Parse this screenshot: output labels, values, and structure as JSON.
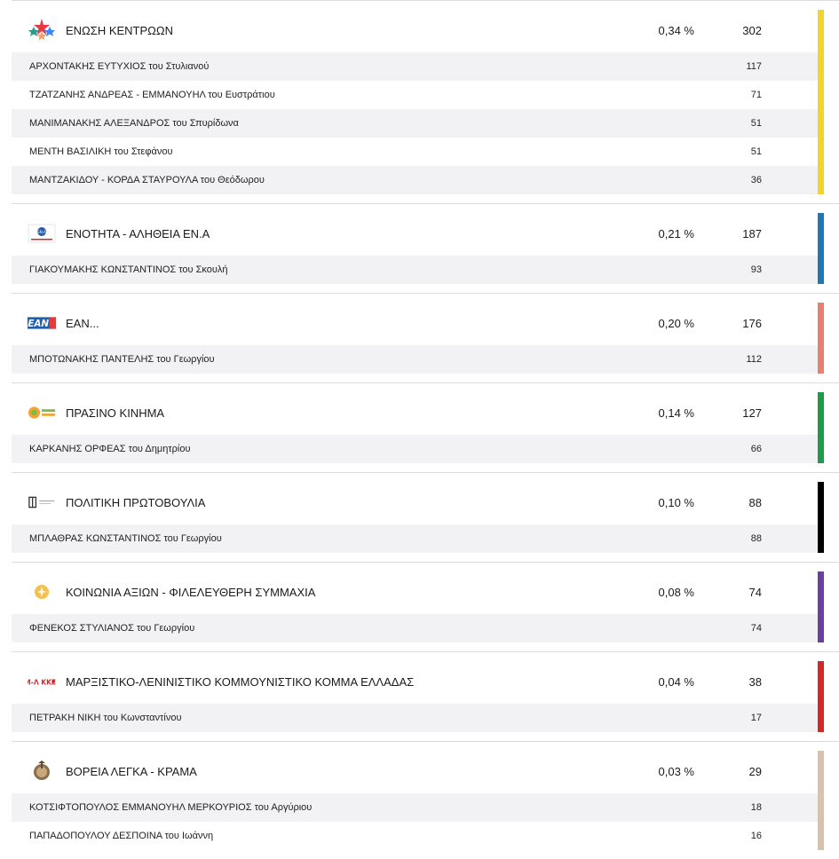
{
  "parties": [
    {
      "name": "ΕΝΩΣΗ ΚΕΝΤΡΩΩΝ",
      "percent": "0,34 %",
      "votes": "302",
      "color": "#f2d52a",
      "logo_icon": "star-cluster-logo-icon",
      "candidates": [
        {
          "name": "ΑΡΧΟΝΤΑΚΗΣ ΕΥΤΥΧΙΟΣ του Στυλιανού",
          "votes": "117"
        },
        {
          "name": "ΤΖΑΤΖΑΝΗΣ ΑΝΔΡΕΑΣ - ΕΜΜΑΝΟΥΗΛ του Ευστράτιου",
          "votes": "71"
        },
        {
          "name": "ΜΑΝΙΜΑΝΑΚΗΣ ΑΛΕΞΑΝΔΡΟΣ του Σπυρίδωνα",
          "votes": "51"
        },
        {
          "name": "ΜΕΝΤΗ ΒΑΣΙΛΙΚΗ του Στεφάνου",
          "votes": "51"
        },
        {
          "name": "ΜΑΝΤΖΑΚΙΔΟΥ - ΚΟΡΔΑ ΣΤΑΥΡΟΥΛΑ του Θεόδωρου",
          "votes": "36"
        }
      ]
    },
    {
      "name": "ΕΝΟΤΗΤΑ - ΑΛΗΘΕΙΑ ΕΝ.Α",
      "percent": "0,21 %",
      "votes": "187",
      "color": "#1f77b4",
      "logo_icon": "ena-logo-icon",
      "logo_text": "ΕΝ.Α",
      "candidates": [
        {
          "name": "ΓΙΑΚΟΥΜΑΚΗΣ ΚΩΝΣΤΑΝΤΙΝΟΣ του Σκουλή",
          "votes": "93"
        }
      ]
    },
    {
      "name": "ΕΑΝ...",
      "percent": "0,20 %",
      "votes": "176",
      "color": "#e8806f",
      "logo_icon": "ean-logo-icon",
      "logo_text": "ΕΑΝ",
      "candidates": [
        {
          "name": "ΜΠΟΤΩΝΑΚΗΣ ΠΑΝΤΕΛΗΣ του Γεωργίου",
          "votes": "112"
        }
      ]
    },
    {
      "name": "ΠΡΑΣΙΝΟ ΚΙΝΗΜΑ",
      "percent": "0,14 %",
      "votes": "127",
      "color": "#1f9a4b",
      "logo_icon": "green-movement-logo-icon",
      "candidates": [
        {
          "name": "ΚΑΡΚΑΝΗΣ ΟΡΦΕΑΣ του Δημητρίου",
          "votes": "66"
        }
      ]
    },
    {
      "name": "ΠΟΛΙΤΙΚΗ ΠΡΩΤΟΒΟΥΛΙΑ",
      "percent": "0,10 %",
      "votes": "88",
      "color": "#000000",
      "logo_icon": "political-initiative-logo-icon",
      "candidates": [
        {
          "name": "ΜΠΛΑΘΡΑΣ ΚΩΝΣΤΑΝΤΙΝΟΣ του Γεωργίου",
          "votes": "88"
        }
      ]
    },
    {
      "name": "ΚΟΙΝΩΝΙΑ ΑΞΙΩΝ - ΦΙΛΕΛΕΥΘΕΡΗ ΣΥΜΜΑΧΙΑ",
      "percent": "0,08 %",
      "votes": "74",
      "color": "#6b3fa0",
      "logo_icon": "society-of-values-logo-icon",
      "candidates": [
        {
          "name": "ΦΕΝΕΚΟΣ ΣΤΥΛΙΑΝΟΣ του Γεωργίου",
          "votes": "74"
        }
      ]
    },
    {
      "name": "ΜΑΡΞΙΣΤΙΚΟ-ΛΕΝΙΝΙΣΤΙΚΟ ΚΟΜΜΟΥΝΙΣΤΙΚΟ ΚΟΜΜΑ ΕΛΛΑΔΑΣ",
      "percent": "0,04 %",
      "votes": "38",
      "color": "#d62728",
      "logo_icon": "ml-kke-logo-icon",
      "logo_text": "Μ-Λ ΚΚΕ",
      "candidates": [
        {
          "name": "ΠΕΤΡΑΚΗ ΝΙΚΗ του Κωνσταντίνου",
          "votes": "17"
        }
      ]
    },
    {
      "name": "ΒΟΡΕΙΑ ΛΕΓΚΑ - ΚΡΑΜΑ",
      "percent": "0,03 %",
      "votes": "29",
      "color": "#d9c2aa",
      "logo_icon": "northern-league-logo-icon",
      "candidates": [
        {
          "name": "ΚΟΤΣΙΦΤΟΠΟΥΛΟΣ ΕΜΜΑΝΟΥΗΛ ΜΕΡΚΟΥΡΙΟΣ του Αργύριου",
          "votes": "18"
        },
        {
          "name": "ΠΑΠΑΔΟΠΟΥΛΟΥ ΔΕΣΠΟΙΝΑ του Ιωάννη",
          "votes": "16"
        }
      ]
    }
  ]
}
